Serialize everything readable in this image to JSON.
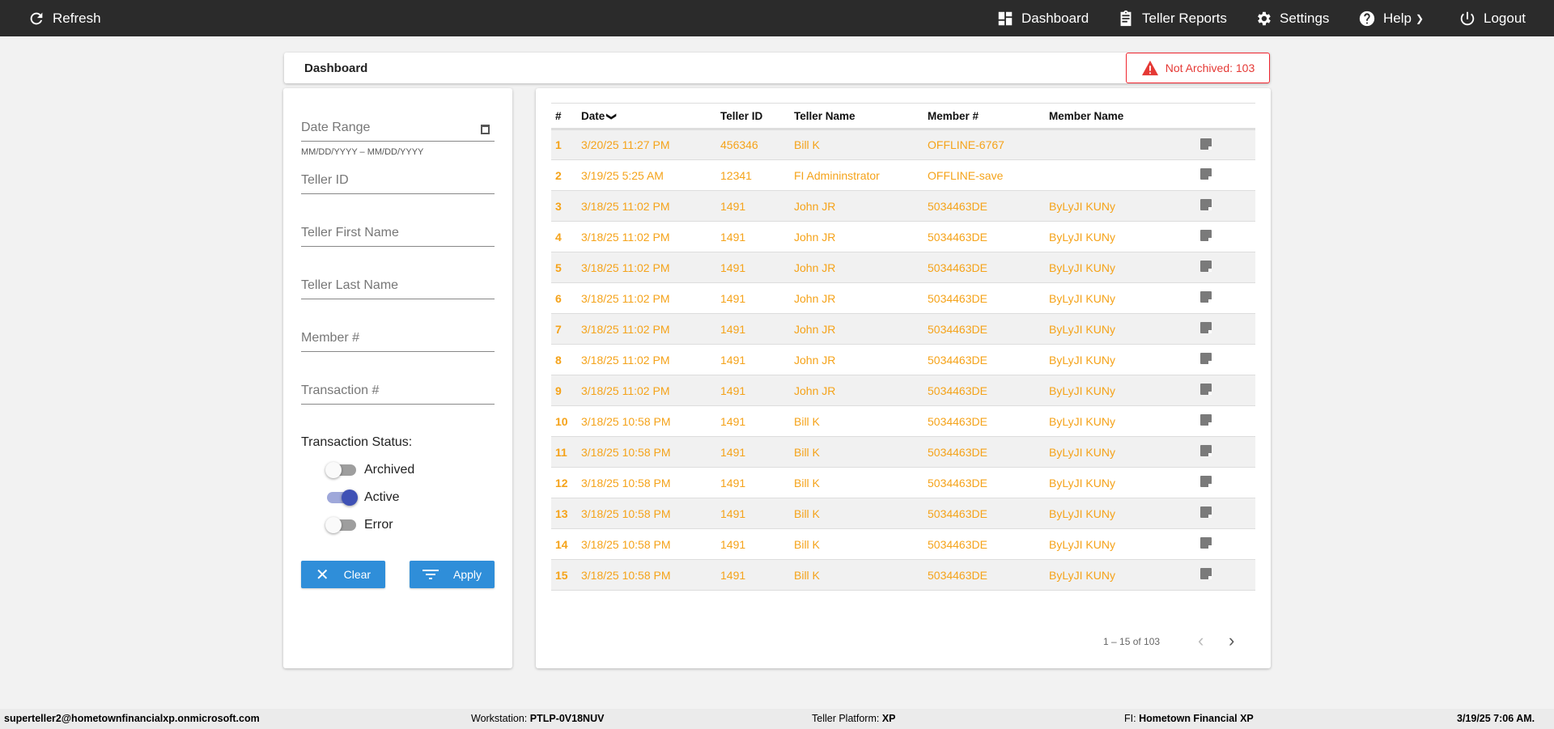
{
  "topbar": {
    "refresh": "Refresh",
    "dashboard": "Dashboard",
    "teller_reports": "Teller Reports",
    "settings": "Settings",
    "help": "Help",
    "logout": "Logout"
  },
  "header": {
    "title": "Dashboard",
    "badge": "Not Archived: 103",
    "badge_color": "#e53935"
  },
  "filters": {
    "date_range": "Date Range",
    "date_helper": "MM/DD/YYYY – MM/DD/YYYY",
    "teller_id": "Teller ID",
    "first_name": "Teller First Name",
    "last_name": "Teller Last Name",
    "member": "Member #",
    "transaction": "Transaction #",
    "status_label": "Transaction Status:",
    "toggles": [
      {
        "label": "Archived",
        "on": false
      },
      {
        "label": "Active",
        "on": true
      },
      {
        "label": "Error",
        "on": false
      }
    ],
    "clear": "Clear",
    "apply": "Apply"
  },
  "table": {
    "headers": [
      "#",
      "Date",
      "Teller ID",
      "Teller Name",
      "Member #",
      "Member Name"
    ],
    "sort_column": "Date",
    "sort_dir": "desc",
    "row_color": "#f5a31a",
    "rows": [
      [
        "1",
        "3/20/25 11:27 PM",
        "456346",
        "Bill K",
        "OFFLINE-6767",
        ""
      ],
      [
        "2",
        "3/19/25 5:25 AM",
        "12341",
        "FI Admininstrator",
        "OFFLINE-save",
        ""
      ],
      [
        "3",
        "3/18/25 11:02 PM",
        "1491",
        "John JR",
        "5034463DE",
        "ByLyJI KUNy"
      ],
      [
        "4",
        "3/18/25 11:02 PM",
        "1491",
        "John JR",
        "5034463DE",
        "ByLyJI KUNy"
      ],
      [
        "5",
        "3/18/25 11:02 PM",
        "1491",
        "John JR",
        "5034463DE",
        "ByLyJI KUNy"
      ],
      [
        "6",
        "3/18/25 11:02 PM",
        "1491",
        "John JR",
        "5034463DE",
        "ByLyJI KUNy"
      ],
      [
        "7",
        "3/18/25 11:02 PM",
        "1491",
        "John JR",
        "5034463DE",
        "ByLyJI KUNy"
      ],
      [
        "8",
        "3/18/25 11:02 PM",
        "1491",
        "John JR",
        "5034463DE",
        "ByLyJI KUNy"
      ],
      [
        "9",
        "3/18/25 11:02 PM",
        "1491",
        "John JR",
        "5034463DE",
        "ByLyJI KUNy"
      ],
      [
        "10",
        "3/18/25 10:58 PM",
        "1491",
        "Bill K",
        "5034463DE",
        "ByLyJI KUNy"
      ],
      [
        "11",
        "3/18/25 10:58 PM",
        "1491",
        "Bill K",
        "5034463DE",
        "ByLyJI KUNy"
      ],
      [
        "12",
        "3/18/25 10:58 PM",
        "1491",
        "Bill K",
        "5034463DE",
        "ByLyJI KUNy"
      ],
      [
        "13",
        "3/18/25 10:58 PM",
        "1491",
        "Bill K",
        "5034463DE",
        "ByLyJI KUNy"
      ],
      [
        "14",
        "3/18/25 10:58 PM",
        "1491",
        "Bill K",
        "5034463DE",
        "ByLyJI KUNy"
      ],
      [
        "15",
        "3/18/25 10:58 PM",
        "1491",
        "Bill K",
        "5034463DE",
        "ByLyJI KUNy"
      ]
    ],
    "pagination": "1 – 15 of 103"
  },
  "footer": {
    "user": "superteller2@hometownfinancialxp.onmicrosoft.com",
    "workstation_label": "Workstation:",
    "workstation": "PTLP-0V18NUV",
    "platform_label": "Teller Platform:",
    "platform": "XP",
    "fi_label": "FI:",
    "fi": "Hometown Financial XP",
    "datetime": "3/19/25 7:06 AM."
  }
}
